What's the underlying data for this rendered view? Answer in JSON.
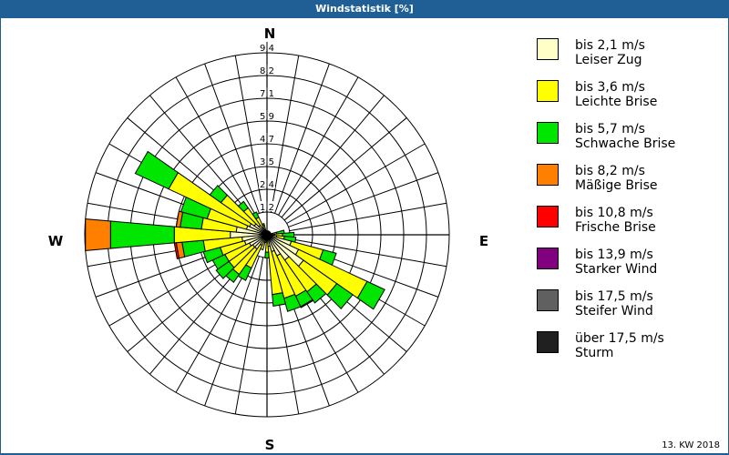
{
  "window": {
    "title": "Windstatistik [%]",
    "footer": "13. KW 2018"
  },
  "compass": {
    "n": "N",
    "e": "E",
    "s": "S",
    "w": "W"
  },
  "legend": [
    {
      "speed": "bis 2,1 m/s",
      "name": "Leiser Zug",
      "color": "#ffffc8"
    },
    {
      "speed": "bis 3,6 m/s",
      "name": "Leichte Brise",
      "color": "#ffff00"
    },
    {
      "speed": "bis 5,7 m/s",
      "name": "Schwache Brise",
      "color": "#00e600"
    },
    {
      "speed": "bis 8,2 m/s",
      "name": "Mäßige Brise",
      "color": "#ff8000"
    },
    {
      "speed": "bis 10,8 m/s",
      "name": "Frische Brise",
      "color": "#ff0000"
    },
    {
      "speed": "bis 13,9 m/s",
      "name": "Starker Wind",
      "color": "#800080"
    },
    {
      "speed": "bis 17,5 m/s",
      "name": "Steifer Wind",
      "color": "#606060"
    },
    {
      "speed": "über 17,5 m/s",
      "name": "Sturm",
      "color": "#202020"
    }
  ],
  "chart_data": {
    "type": "polar-bar (wind rose)",
    "title": "Windstatistik [%]",
    "subtitle": "13. KW 2018",
    "radial_unit": "%",
    "radial_ticks": [
      "1,2",
      "2,4",
      "3,5",
      "4,7",
      "5,9",
      "7,1",
      "8,2",
      "9,4"
    ],
    "radial_max": 9.4,
    "direction_labels": [
      "N",
      "E",
      "S",
      "W"
    ],
    "sector_width_deg": 10,
    "series_names": [
      "bis 2,1 m/s",
      "bis 3,6 m/s",
      "bis 5,7 m/s",
      "bis 8,2 m/s",
      "bis 10,8 m/s"
    ],
    "series_colors": [
      "#ffffc8",
      "#ffff00",
      "#00e600",
      "#ff8000",
      "#ff0000"
    ],
    "sectors_note": "cumulative radius (%) per speed class, by bearing (0=N, clockwise)",
    "sectors": [
      {
        "bearing": 80,
        "cum": [
          0.3,
          0.5,
          0.9
        ]
      },
      {
        "bearing": 90,
        "cum": [
          0.4,
          0.8,
          1.4
        ]
      },
      {
        "bearing": 100,
        "cum": [
          0.5,
          0.9,
          1.5
        ]
      },
      {
        "bearing": 110,
        "cum": [
          1.3,
          3.0,
          3.7
        ]
      },
      {
        "bearing": 120,
        "cum": [
          1.8,
          5.7,
          6.7
        ]
      },
      {
        "bearing": 130,
        "cum": [
          2.3,
          4.4,
          5.4
        ]
      },
      {
        "bearing": 140,
        "cum": [
          1.6,
          3.6,
          4.3
        ]
      },
      {
        "bearing": 150,
        "cum": [
          1.2,
          3.5,
          4.1,
          4.15
        ]
      },
      {
        "bearing": 160,
        "cum": [
          0.9,
          3.4,
          4.1
        ]
      },
      {
        "bearing": 170,
        "cum": [
          0.6,
          3.1,
          3.7
        ]
      },
      {
        "bearing": 180,
        "cum": [
          0.3,
          0.9,
          1.2
        ]
      },
      {
        "bearing": 190,
        "cum": [
          0.1,
          0.4
        ]
      },
      {
        "bearing": 200,
        "cum": [
          0.4,
          0.8
        ]
      },
      {
        "bearing": 210,
        "cum": [
          0.6,
          1.9,
          2.6
        ]
      },
      {
        "bearing": 220,
        "cum": [
          0.9,
          2.5,
          3.0
        ]
      },
      {
        "bearing": 230,
        "cum": [
          0.9,
          2.4,
          3.2
        ]
      },
      {
        "bearing": 240,
        "cum": [
          1.0,
          2.4,
          3.1
        ]
      },
      {
        "bearing": 250,
        "cum": [
          1.2,
          2.5,
          3.4
        ]
      },
      {
        "bearing": 260,
        "cum": [
          1.3,
          3.3,
          4.4,
          4.7,
          4.8
        ]
      },
      {
        "bearing": 270,
        "cum": [
          1.9,
          4.8,
          8.1,
          9.4
        ]
      },
      {
        "bearing": 280,
        "cum": [
          1.6,
          3.4,
          4.5,
          4.7
        ]
      },
      {
        "bearing": 290,
        "cum": [
          1.1,
          3.2,
          4.6
        ]
      },
      {
        "bearing": 300,
        "cum": [
          1.0,
          5.6,
          7.5
        ]
      },
      {
        "bearing": 310,
        "cum": [
          0.8,
          2.9,
          3.6
        ]
      },
      {
        "bearing": 320,
        "cum": [
          0.6,
          1.7,
          2.1
        ]
      },
      {
        "bearing": 330,
        "cum": [
          0.4,
          1.0,
          1.3
        ]
      },
      {
        "bearing": 340,
        "cum": [
          0.2,
          0.5,
          0.6
        ]
      }
    ]
  }
}
